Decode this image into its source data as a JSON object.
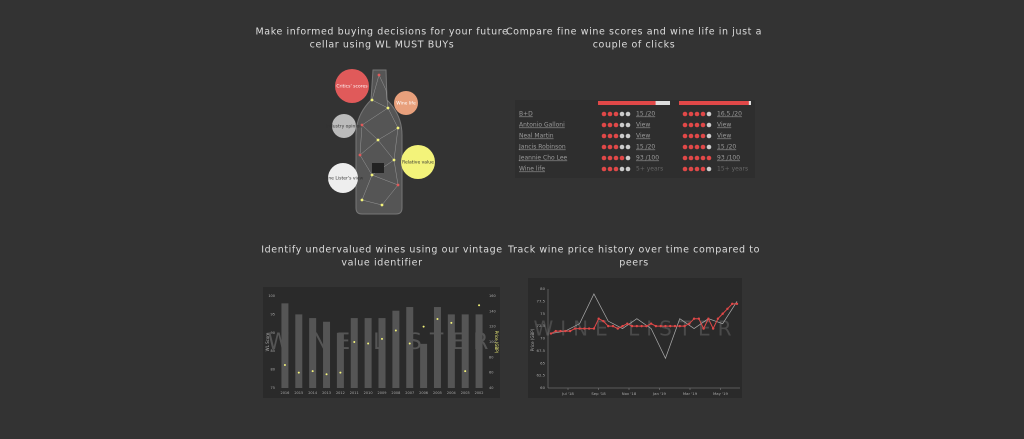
{
  "sections": [
    {
      "heading": [
        "Make informed buying decisions for your future",
        "cellar using WL MUST BUYs"
      ],
      "bubbles": [
        "Critics' scores",
        "Wine life",
        "Industry opinion",
        "Relative value",
        "Wine Lister's view"
      ]
    },
    {
      "heading": [
        "Compare fine wine scores and wine life in just a",
        "couple of clicks"
      ],
      "table": {
        "score_bars": [
          80,
          97
        ],
        "rows": [
          {
            "name": "B+D",
            "dots": [
              3,
              4
            ],
            "cells": [
              "15 /20",
              "16.5 /20"
            ]
          },
          {
            "name": "Antonio Galloni",
            "dots": [
              3,
              4
            ],
            "cells": [
              "View",
              "View"
            ]
          },
          {
            "name": "Neal Martin",
            "dots": [
              3,
              4
            ],
            "cells": [
              "View",
              "View"
            ]
          },
          {
            "name": "Jancis Robinson",
            "dots": [
              3,
              4
            ],
            "cells": [
              "15 /20",
              "15 /20"
            ]
          },
          {
            "name": "Jeannie Cho Lee",
            "dots": [
              4,
              5
            ],
            "cells": [
              "93 /100",
              "93 /100"
            ]
          },
          {
            "name": "Wine life",
            "dots": [
              3,
              4
            ],
            "cells": [
              "5+ years",
              "15+ years"
            ]
          }
        ]
      }
    },
    {
      "heading": [
        "Identify undervalued wines using our vintage",
        "value identifier"
      ],
      "chart": {
        "type": "bar",
        "watermark": "WINE LISTER",
        "y_label": "WL Score",
        "y2_label": "Price (GBP)",
        "categories": [
          "2016",
          "2015",
          "2014",
          "2013",
          "2012",
          "2011",
          "2010",
          "2009",
          "2008",
          "2007",
          "2006",
          "2005",
          "2004",
          "2003",
          "2002"
        ],
        "scores": [
          98,
          95,
          94,
          93,
          90,
          94,
          94,
          94,
          96,
          97,
          87,
          97,
          95,
          95,
          95
        ],
        "prices": [
          70,
          60,
          62,
          58,
          60,
          100,
          98,
          104,
          115,
          98,
          120,
          130,
          125,
          62,
          148
        ],
        "ylim": [
          75,
          100
        ],
        "yticks": [
          75,
          80,
          85,
          90,
          95,
          100
        ],
        "y2lim": [
          40,
          160
        ],
        "y2ticks": [
          40,
          60,
          80,
          100,
          120,
          140,
          160
        ]
      }
    },
    {
      "heading": [
        "Track wine price history over time compared to",
        "peers"
      ],
      "chart": {
        "type": "line",
        "watermark": "WINE LISTER",
        "y_label": "Price (GBP)",
        "xticks": [
          "Jul '18",
          "Sep '18",
          "Nov '18",
          "Jan '19",
          "Mar '19",
          "May '19"
        ],
        "ylim": [
          60,
          80
        ],
        "yticks": [
          60,
          62.5,
          65,
          67.5,
          70,
          72.5,
          75,
          77.5,
          80
        ],
        "series": [
          {
            "color": "#aaaaaa",
            "values": [
              71,
              71.5,
              73,
              79,
              73.5,
              72,
              74,
              72,
              66,
              74,
              72,
              74,
              73,
              77.5
            ]
          },
          {
            "color": "#e04848",
            "values": [
              71,
              71.5,
              71.5,
              71.5,
              71.5,
              72,
              72,
              72,
              72,
              72,
              74,
              73.5,
              72.5,
              72.5,
              72,
              72.5,
              73,
              72.5,
              72.5,
              72.5,
              72.5,
              73,
              72.5,
              72.5,
              72.5,
              72.5,
              72.5,
              72.5,
              72.5,
              73,
              74,
              74,
              72,
              74,
              72,
              74,
              75,
              76,
              77,
              77
            ]
          }
        ]
      }
    }
  ]
}
